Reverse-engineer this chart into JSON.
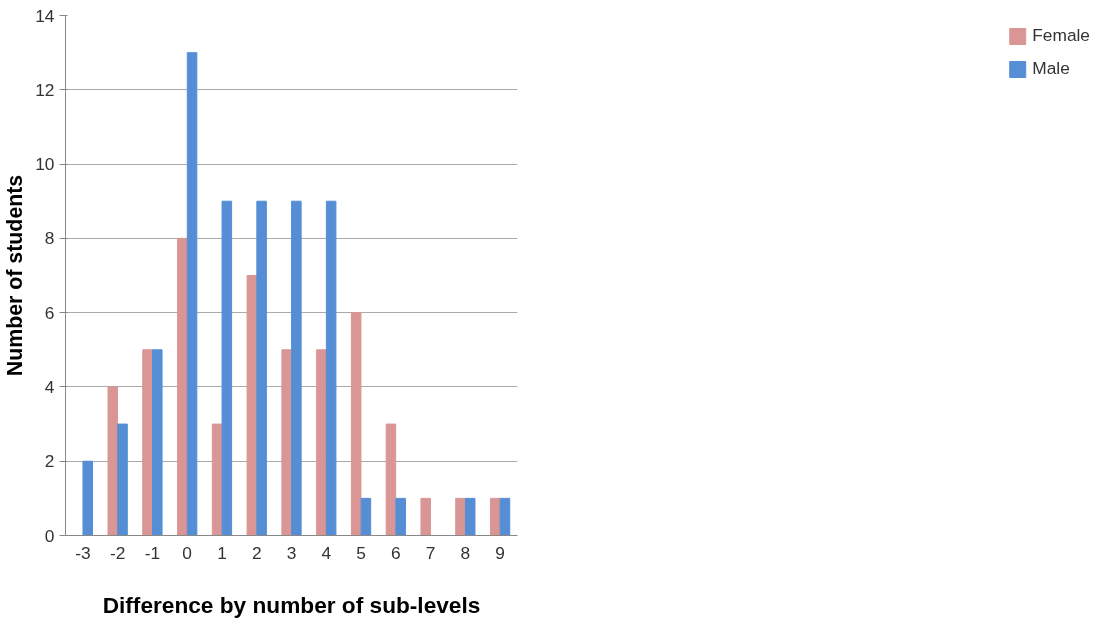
{
  "chart_data": {
    "type": "bar",
    "xlabel": "Difference by number of sub-levels",
    "ylabel": "Number of students",
    "categories": [
      "-3",
      "-2",
      "-1",
      "0",
      "1",
      "2",
      "3",
      "4",
      "5",
      "6",
      "7",
      "8",
      "9"
    ],
    "series": [
      {
        "name": "Female",
        "color": "#d99694",
        "values": [
          0,
          4,
          5,
          8,
          3,
          7,
          5,
          5,
          6,
          3,
          1,
          1,
          1
        ]
      },
      {
        "name": "Male",
        "color": "#558ed5",
        "values": [
          2,
          3,
          5,
          13,
          9,
          9,
          9,
          9,
          1,
          1,
          0,
          1,
          1
        ]
      }
    ],
    "ylim": [
      0,
      14
    ],
    "yticks": [
      0,
      2,
      4,
      6,
      8,
      10,
      12,
      14
    ],
    "grid": "y",
    "legend": "right"
  }
}
